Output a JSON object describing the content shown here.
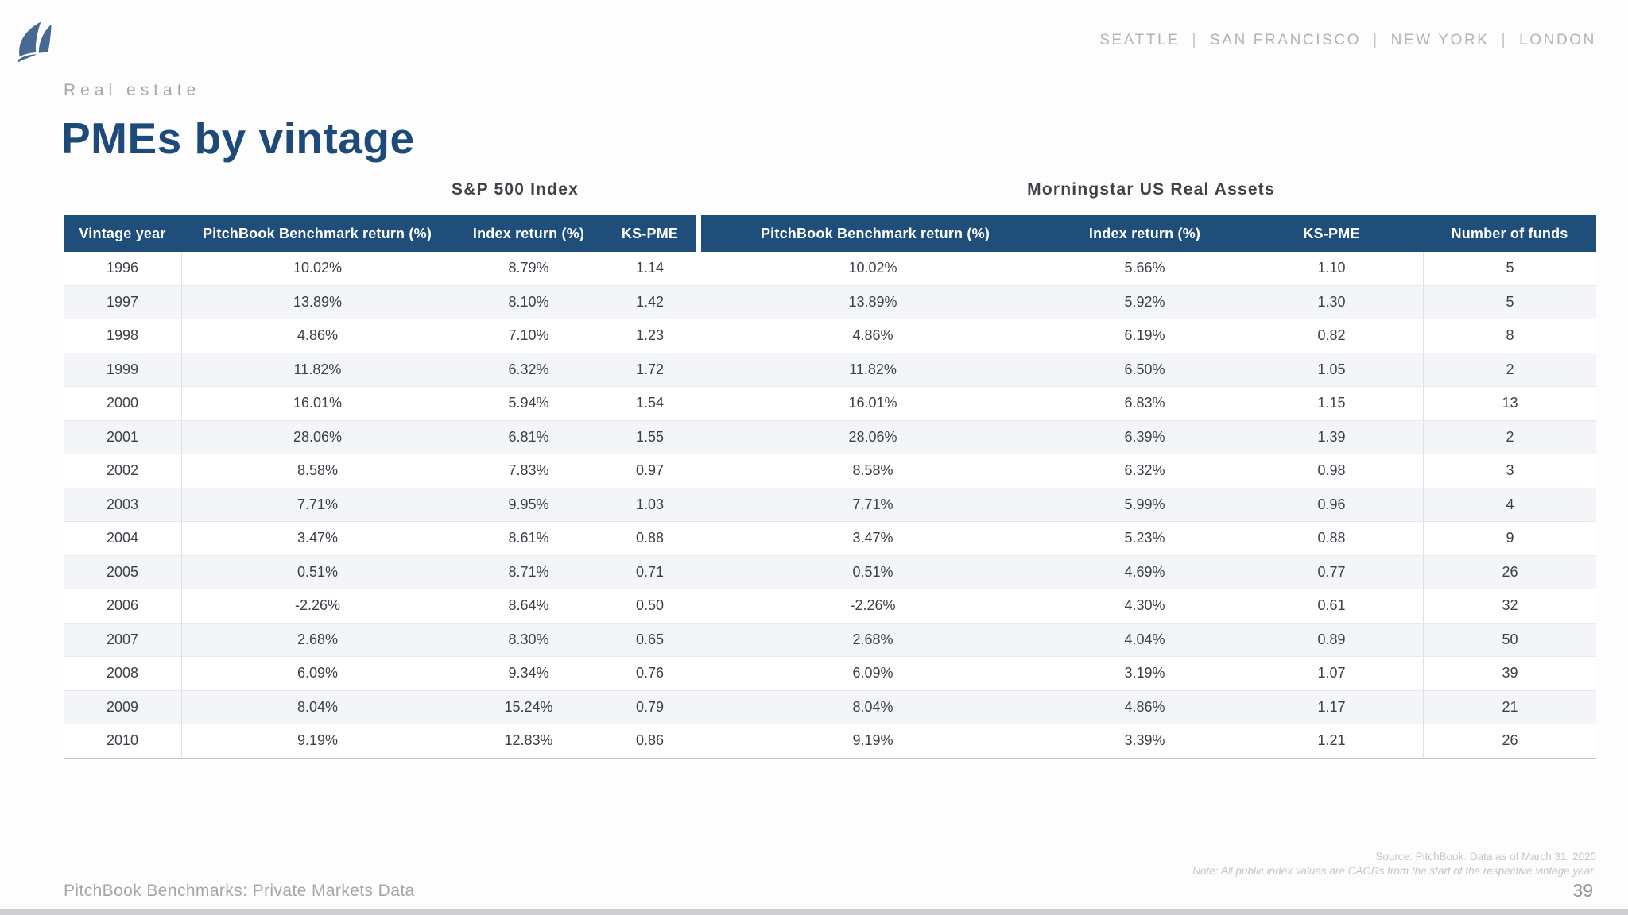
{
  "colors": {
    "page_bg": "#fdfdfd",
    "header_bg": "#1f4e7b",
    "title": "#1d4a78",
    "logo": "#48698f",
    "stripe": "#f4f5f8",
    "body_text": "#3b4049",
    "muted": "#a6a6a9",
    "muted_light": "#b3b3b8",
    "source_text": "#c3c5cc"
  },
  "header": {
    "cities": [
      "SEATTLE",
      "SAN FRANCISCO",
      "NEW YORK",
      "LONDON"
    ],
    "separator": "|"
  },
  "hero": {
    "eyebrow": "Real estate",
    "title": "PMEs by vintage"
  },
  "table": {
    "group1_title": "S&P 500 Index",
    "group2_title": "Morningstar US Real Assets",
    "columns": [
      "Vintage year",
      "PitchBook Benchmark return (%)",
      "Index return (%)",
      "KS-PME",
      "PitchBook Benchmark return (%)",
      "Index return (%)",
      "KS-PME",
      "Number of funds"
    ],
    "rows": [
      [
        "1996",
        "10.02%",
        "8.79%",
        "1.14",
        "10.02%",
        "5.66%",
        "1.10",
        "5"
      ],
      [
        "1997",
        "13.89%",
        "8.10%",
        "1.42",
        "13.89%",
        "5.92%",
        "1.30",
        "5"
      ],
      [
        "1998",
        "4.86%",
        "7.10%",
        "1.23",
        "4.86%",
        "6.19%",
        "0.82",
        "8"
      ],
      [
        "1999",
        "11.82%",
        "6.32%",
        "1.72",
        "11.82%",
        "6.50%",
        "1.05",
        "2"
      ],
      [
        "2000",
        "16.01%",
        "5.94%",
        "1.54",
        "16.01%",
        "6.83%",
        "1.15",
        "13"
      ],
      [
        "2001",
        "28.06%",
        "6.81%",
        "1.55",
        "28.06%",
        "6.39%",
        "1.39",
        "2"
      ],
      [
        "2002",
        "8.58%",
        "7.83%",
        "0.97",
        "8.58%",
        "6.32%",
        "0.98",
        "3"
      ],
      [
        "2003",
        "7.71%",
        "9.95%",
        "1.03",
        "7.71%",
        "5.99%",
        "0.96",
        "4"
      ],
      [
        "2004",
        "3.47%",
        "8.61%",
        "0.88",
        "3.47%",
        "5.23%",
        "0.88",
        "9"
      ],
      [
        "2005",
        "0.51%",
        "8.71%",
        "0.71",
        "0.51%",
        "4.69%",
        "0.77",
        "26"
      ],
      [
        "2006",
        "-2.26%",
        "8.64%",
        "0.50",
        "-2.26%",
        "4.30%",
        "0.61",
        "32"
      ],
      [
        "2007",
        "2.68%",
        "8.30%",
        "0.65",
        "2.68%",
        "4.04%",
        "0.89",
        "50"
      ],
      [
        "2008",
        "6.09%",
        "9.34%",
        "0.76",
        "6.09%",
        "3.19%",
        "1.07",
        "39"
      ],
      [
        "2009",
        "8.04%",
        "15.24%",
        "0.79",
        "8.04%",
        "4.86%",
        "1.17",
        "21"
      ],
      [
        "2010",
        "9.19%",
        "12.83%",
        "0.86",
        "9.19%",
        "3.39%",
        "1.21",
        "26"
      ]
    ]
  },
  "footer": {
    "source": "Source: PitchBook. Data as of March 31, 2020",
    "note": "Note: All public index values are CAGRs from the start of the respective vintage year.",
    "left_text": "PitchBook Benchmarks: Private Markets Data",
    "page_number": "39"
  }
}
